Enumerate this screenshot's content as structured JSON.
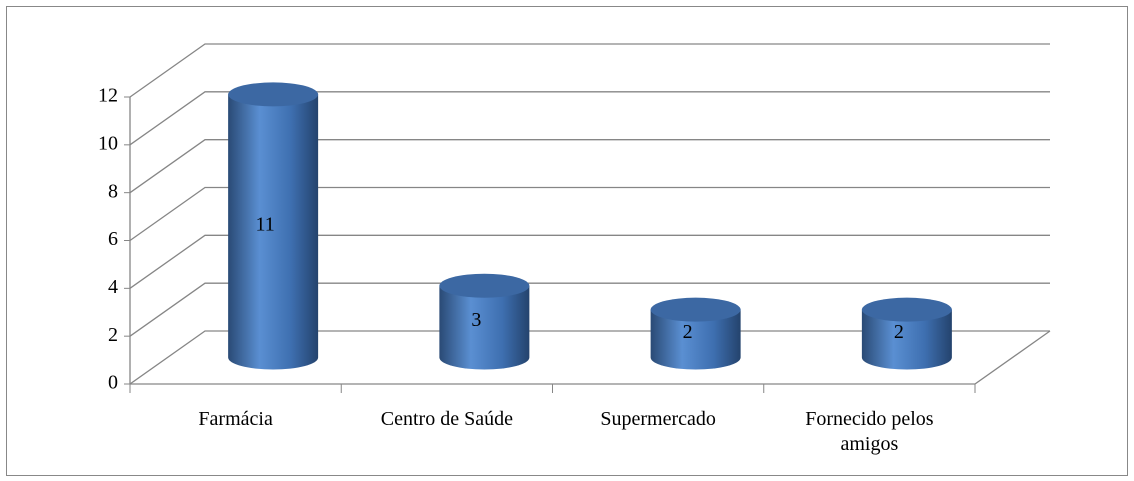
{
  "chart_data": {
    "type": "bar3d",
    "categories": [
      "Farmácia",
      "Centro de Saúde",
      "Supermercado",
      "Fornecido pelos amigos"
    ],
    "values": [
      11,
      3,
      2,
      2
    ],
    "color": "#4f81bd",
    "ylim": [
      0,
      12
    ],
    "yticks": [
      0,
      2,
      4,
      6,
      8,
      10,
      12
    ],
    "grid": true
  }
}
